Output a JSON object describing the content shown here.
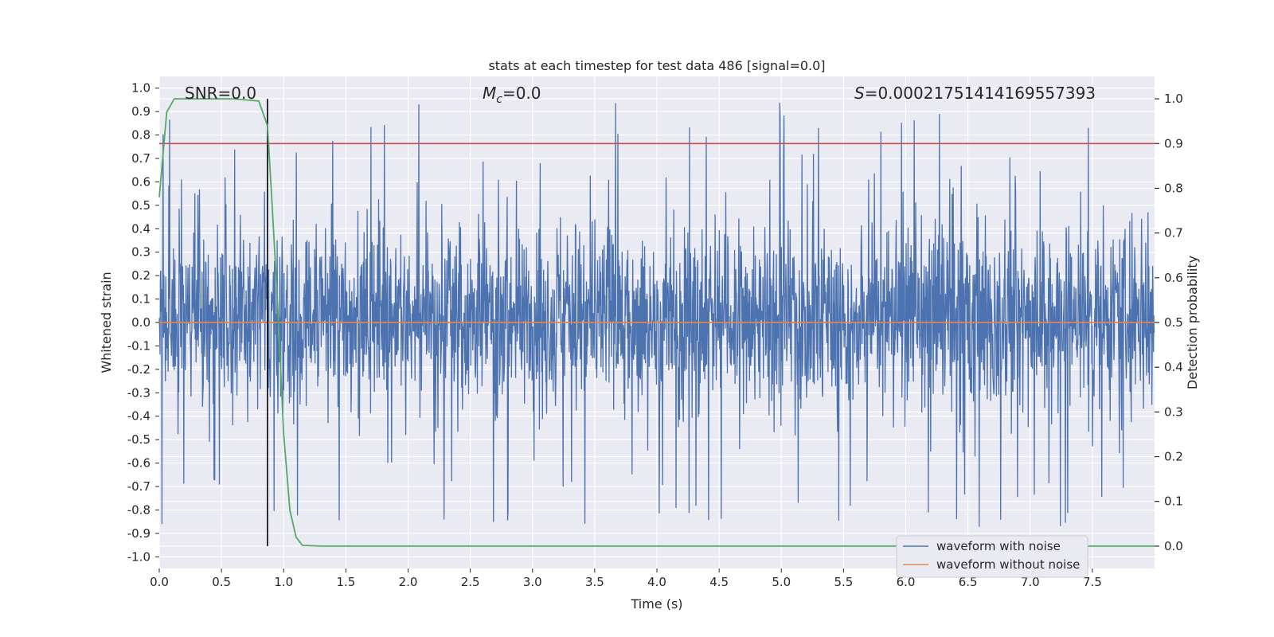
{
  "chart_data": {
    "type": "line",
    "title": "stats at each timestep for test data 486 [signal=0.0]",
    "xlabel": "Time (s)",
    "ylabel": "Whitened strain",
    "y2label": "Detection probability",
    "xlim": [
      0.0,
      8.0
    ],
    "ylim": [
      -1.05,
      1.05
    ],
    "y2lim": [
      -0.05,
      1.05
    ],
    "xticks": [
      "0.0",
      "0.5",
      "1.0",
      "1.5",
      "2.0",
      "2.5",
      "3.0",
      "3.5",
      "4.0",
      "4.5",
      "5.0",
      "5.5",
      "6.0",
      "6.5",
      "7.0",
      "7.5"
    ],
    "yticks": [
      "1.0",
      "0.9",
      "0.8",
      "0.7",
      "0.6",
      "0.5",
      "0.4",
      "0.3",
      "0.2",
      "0.1",
      "0.0",
      "-0.1",
      "-0.2",
      "-0.3",
      "-0.4",
      "-0.5",
      "-0.6",
      "-0.7",
      "-0.8",
      "-0.9",
      "-1.0"
    ],
    "y2ticks": [
      "1.0",
      "0.9",
      "0.8",
      "0.7",
      "0.6",
      "0.5",
      "0.4",
      "0.3",
      "0.2",
      "0.1",
      "0.0"
    ],
    "grid": true,
    "legend_position": "lower-right",
    "annotations": {
      "snr": "SNR=0.0",
      "mc_symbol": "M",
      "mc_sub": "c",
      "mc_value": "=0.0",
      "s_symbol": "S",
      "s_value": "=0.00021751414169557393"
    },
    "series": [
      {
        "name": "waveform with noise",
        "color": "#4c72b0",
        "description": "dense whitened-strain noise",
        "y_range_typical": [
          -0.55,
          0.6
        ],
        "y_extremes": [
          -0.93,
          1.0
        ]
      },
      {
        "name": "waveform without noise",
        "color": "#dd8452",
        "x": [
          0.0,
          8.0
        ],
        "y": [
          0.0,
          0.0
        ]
      },
      {
        "name": "detection probability",
        "color": "#55a868",
        "axis": "right",
        "x": [
          0.0,
          0.06,
          0.12,
          0.2,
          0.35,
          0.6,
          0.8,
          0.87,
          0.9,
          0.95,
          1.0,
          1.05,
          1.1,
          1.15,
          1.3,
          8.0
        ],
        "y": [
          0.78,
          0.97,
          1.0,
          1.0,
          1.0,
          1.0,
          0.995,
          0.94,
          0.8,
          0.55,
          0.25,
          0.08,
          0.02,
          0.002,
          0.0,
          0.0
        ]
      }
    ],
    "hlines": [
      {
        "axis": "right",
        "y": 0.9,
        "color": "#c44e52"
      }
    ],
    "vlines": [
      {
        "x": 0.87,
        "color": "#000000"
      }
    ]
  }
}
